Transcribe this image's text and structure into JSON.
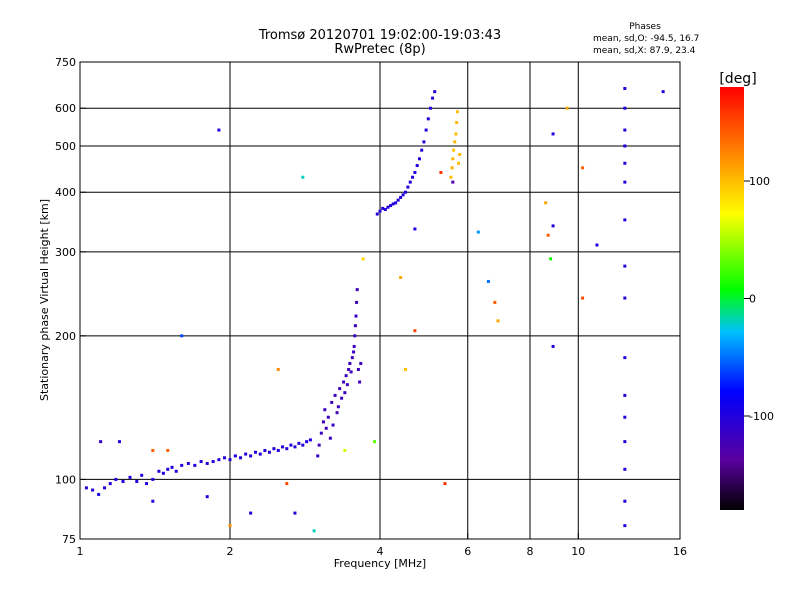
{
  "chart_data": {
    "type": "scatter",
    "title": "Tromsø 20120701 19:02:00-19:03:43",
    "subtitle": "RwPretec (8p)",
    "xlabel": "Frequency [MHz]",
    "ylabel": "Stationary phase Virtual Height [km]",
    "xscale": "log",
    "yscale": "log",
    "xlim": [
      1,
      16
    ],
    "ylim": [
      75,
      750
    ],
    "grid": true,
    "x_ticks": [
      1,
      2,
      4,
      6,
      8,
      10,
      16
    ],
    "x_tick_labels": [
      "1",
      "2",
      "4",
      "6",
      "8",
      "10",
      "16"
    ],
    "y_ticks": [
      75,
      100,
      200,
      300,
      400,
      500,
      600,
      750
    ],
    "y_tick_labels": [
      "75",
      "100",
      "200",
      "300",
      "400",
      "500",
      "600",
      "750"
    ],
    "stats": {
      "title": "Phases",
      "line_o": "mean, sd,O: -94.5, 16.7",
      "line_x": "mean, sd,X:  87.9, 23.4"
    },
    "colorbar": {
      "label": "[deg]",
      "range": [
        -180,
        180
      ],
      "ticks": [
        100,
        0,
        -100
      ],
      "tick_labels": [
        "100",
        "0",
        "-100"
      ]
    },
    "point_columns": [
      "frequency_MHz",
      "virtual_height_km",
      "phase_deg"
    ],
    "points": [
      [
        1.03,
        96,
        -105
      ],
      [
        1.06,
        95,
        -100
      ],
      [
        1.09,
        93,
        -95
      ],
      [
        1.12,
        96,
        -100
      ],
      [
        1.15,
        98,
        -102
      ],
      [
        1.18,
        100,
        -98
      ],
      [
        1.22,
        99,
        -104
      ],
      [
        1.26,
        101,
        -100
      ],
      [
        1.3,
        99,
        -96
      ],
      [
        1.33,
        102,
        -102
      ],
      [
        1.36,
        98,
        -99
      ],
      [
        1.4,
        100,
        -103
      ],
      [
        1.44,
        104,
        -100
      ],
      [
        1.47,
        103,
        -97
      ],
      [
        1.5,
        105,
        -101
      ],
      [
        1.53,
        106,
        -100
      ],
      [
        1.56,
        104,
        -98
      ],
      [
        1.6,
        107,
        -104
      ],
      [
        1.65,
        108,
        -100
      ],
      [
        1.7,
        107,
        -97
      ],
      [
        1.75,
        109,
        -101
      ],
      [
        1.8,
        108,
        -100
      ],
      [
        1.85,
        109,
        -103
      ],
      [
        1.9,
        110,
        -99
      ],
      [
        1.95,
        111,
        -100
      ],
      [
        2.0,
        110,
        -104
      ],
      [
        2.05,
        112,
        -98
      ],
      [
        2.1,
        111,
        -100
      ],
      [
        2.15,
        113,
        -102
      ],
      [
        2.2,
        112,
        -99
      ],
      [
        2.25,
        114,
        -100
      ],
      [
        2.3,
        113,
        -97
      ],
      [
        2.35,
        115,
        -101
      ],
      [
        2.4,
        114,
        -103
      ],
      [
        2.45,
        116,
        -100
      ],
      [
        2.5,
        115,
        -98
      ],
      [
        2.55,
        117,
        -101
      ],
      [
        2.6,
        116,
        -104
      ],
      [
        2.65,
        118,
        -100
      ],
      [
        2.7,
        117,
        -99
      ],
      [
        2.75,
        119,
        -102
      ],
      [
        2.8,
        118,
        -100
      ],
      [
        2.85,
        120,
        -97
      ],
      [
        2.9,
        121,
        -101
      ],
      [
        3.0,
        112,
        -115
      ],
      [
        3.02,
        118,
        -120
      ],
      [
        3.05,
        125,
        -118
      ],
      [
        3.08,
        132,
        -122
      ],
      [
        3.1,
        140,
        -116
      ],
      [
        3.12,
        128,
        -121
      ],
      [
        3.15,
        135,
        -119
      ],
      [
        3.18,
        122,
        -117
      ],
      [
        3.2,
        145,
        -120
      ],
      [
        3.22,
        130,
        -114
      ],
      [
        3.25,
        150,
        -118
      ],
      [
        3.28,
        138,
        -123
      ],
      [
        3.3,
        142,
        -116
      ],
      [
        3.32,
        155,
        -120
      ],
      [
        3.35,
        148,
        -119
      ],
      [
        3.38,
        160,
        -121
      ],
      [
        3.4,
        152,
        -117
      ],
      [
        3.42,
        165,
        -118
      ],
      [
        3.44,
        158,
        -122
      ],
      [
        3.46,
        170,
        -120
      ],
      [
        3.48,
        175,
        -116
      ],
      [
        3.5,
        168,
        -119
      ],
      [
        3.52,
        180,
        -121
      ],
      [
        3.54,
        185,
        -118
      ],
      [
        3.55,
        190,
        -120
      ],
      [
        3.56,
        200,
        -117
      ],
      [
        3.57,
        210,
        -119
      ],
      [
        3.58,
        220,
        -116
      ],
      [
        3.59,
        235,
        -118
      ],
      [
        3.6,
        250,
        -120
      ],
      [
        3.62,
        170,
        -118
      ],
      [
        3.64,
        160,
        -119
      ],
      [
        3.66,
        175,
        -117
      ],
      [
        3.95,
        360,
        -98
      ],
      [
        4.0,
        365,
        -100
      ],
      [
        4.05,
        370,
        -102
      ],
      [
        4.1,
        368,
        -99
      ],
      [
        4.15,
        372,
        -101
      ],
      [
        4.2,
        375,
        -100
      ],
      [
        4.25,
        378,
        -103
      ],
      [
        4.3,
        380,
        -98
      ],
      [
        4.35,
        385,
        -100
      ],
      [
        4.4,
        390,
        -102
      ],
      [
        4.45,
        395,
        -99
      ],
      [
        4.5,
        400,
        -101
      ],
      [
        4.55,
        410,
        -100
      ],
      [
        4.6,
        420,
        -97
      ],
      [
        4.65,
        430,
        -102
      ],
      [
        4.7,
        440,
        -100
      ],
      [
        4.75,
        455,
        -98
      ],
      [
        4.8,
        470,
        -101
      ],
      [
        4.85,
        490,
        -100
      ],
      [
        4.9,
        510,
        -103
      ],
      [
        4.95,
        540,
        -99
      ],
      [
        5.0,
        570,
        -100
      ],
      [
        5.05,
        600,
        -102
      ],
      [
        5.1,
        630,
        -101
      ],
      [
        5.15,
        650,
        -99
      ],
      [
        5.55,
        430,
        100
      ],
      [
        5.58,
        450,
        105
      ],
      [
        5.6,
        470,
        102
      ],
      [
        5.62,
        490,
        98
      ],
      [
        5.65,
        510,
        103
      ],
      [
        5.68,
        530,
        100
      ],
      [
        5.7,
        560,
        104
      ],
      [
        5.72,
        590,
        101
      ],
      [
        5.75,
        460,
        99
      ],
      [
        5.78,
        480,
        102
      ],
      [
        12.4,
        80,
        -100
      ],
      [
        12.4,
        90,
        -98
      ],
      [
        12.4,
        105,
        -102
      ],
      [
        12.4,
        120,
        -100
      ],
      [
        12.4,
        135,
        -99
      ],
      [
        12.4,
        150,
        -101
      ],
      [
        12.4,
        180,
        -100
      ],
      [
        12.4,
        240,
        -103
      ],
      [
        12.4,
        280,
        -100
      ],
      [
        12.4,
        350,
        -99
      ],
      [
        12.4,
        420,
        -100
      ],
      [
        12.4,
        460,
        -102
      ],
      [
        12.4,
        500,
        -98
      ],
      [
        12.4,
        540,
        -100
      ],
      [
        12.4,
        600,
        -101
      ],
      [
        12.4,
        660,
        -99
      ],
      [
        8.9,
        340,
        -100
      ],
      [
        8.9,
        190,
        -100
      ],
      [
        8.9,
        530,
        -100
      ],
      [
        10.9,
        310,
        -100
      ],
      [
        14.8,
        650,
        -100
      ],
      [
        1.9,
        540,
        -100
      ],
      [
        2.8,
        430,
        -20
      ],
      [
        1.6,
        200,
        -60
      ],
      [
        6.3,
        330,
        -40
      ],
      [
        6.6,
        260,
        -50
      ],
      [
        8.8,
        290,
        10
      ],
      [
        8.6,
        380,
        110
      ],
      [
        8.7,
        325,
        140
      ],
      [
        9.5,
        600,
        110
      ],
      [
        10.2,
        450,
        140
      ],
      [
        10.2,
        240,
        150
      ],
      [
        6.8,
        235,
        140
      ],
      [
        6.9,
        215,
        110
      ],
      [
        4.4,
        265,
        110
      ],
      [
        5.3,
        440,
        160
      ],
      [
        4.7,
        205,
        150
      ],
      [
        3.7,
        290,
        90
      ],
      [
        4.5,
        170,
        100
      ],
      [
        3.9,
        120,
        30
      ],
      [
        2.5,
        170,
        120
      ],
      [
        2.0,
        80,
        120
      ],
      [
        2.6,
        98,
        150
      ],
      [
        5.4,
        98,
        160
      ],
      [
        3.4,
        115,
        60
      ],
      [
        1.5,
        115,
        140
      ],
      [
        2.95,
        78,
        -20
      ],
      [
        1.1,
        120,
        -110
      ],
      [
        1.2,
        120,
        -100
      ],
      [
        1.4,
        115,
        140
      ],
      [
        1.4,
        90,
        -100
      ],
      [
        1.8,
        92,
        -100
      ],
      [
        2.2,
        85,
        -100
      ],
      [
        2.7,
        85,
        -100
      ],
      [
        5.6,
        420,
        -130
      ],
      [
        4.7,
        335,
        -100
      ]
    ]
  }
}
